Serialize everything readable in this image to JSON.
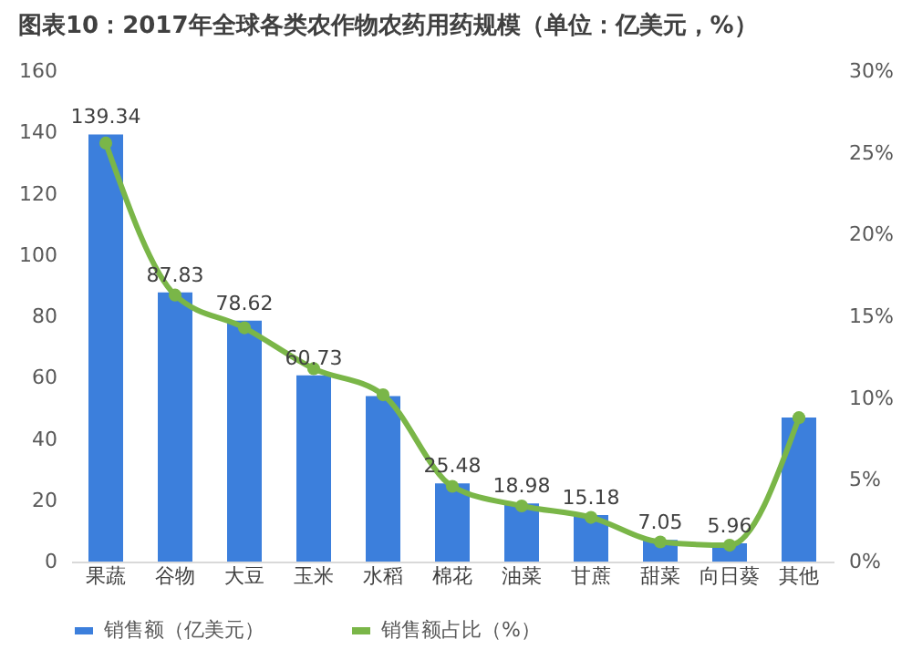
{
  "chart_data": {
    "type": "bar",
    "title": "图表10：2017年全球各类农作物农药用药规模（单位：亿美元，%）",
    "categories": [
      "果蔬",
      "谷物",
      "大豆",
      "玉米",
      "水稻",
      "棉花",
      "油菜",
      "甘蔗",
      "甜菜",
      "向日葵",
      "其他"
    ],
    "series": [
      {
        "name": "销售额（亿美元）",
        "color": "#3c7fdc",
        "values": [
          139.34,
          87.83,
          78.62,
          60.73,
          54,
          25.48,
          18.98,
          15.18,
          7.05,
          5.96,
          47
        ],
        "value_labels": [
          "139.34",
          "87.83",
          "78.62",
          "60.73",
          null,
          "25.48",
          "18.98",
          "15.18",
          "7.05",
          "5.96",
          null
        ]
      },
      {
        "name": "销售额占比（%）",
        "type": "line",
        "axis": "y2",
        "color": "#7ab648",
        "values": [
          25.6,
          16.3,
          14.3,
          11.8,
          10.2,
          4.6,
          3.4,
          2.7,
          1.2,
          1.0,
          8.8
        ]
      }
    ],
    "ylim": [
      0,
      160
    ],
    "yticks": [
      0,
      20,
      40,
      60,
      80,
      100,
      120,
      140,
      160
    ],
    "y2lim": [
      0,
      30
    ],
    "y2ticks": [
      {
        "value": 0,
        "label": "0%"
      },
      {
        "value": 5,
        "label": "5%"
      },
      {
        "value": 10,
        "label": "10%"
      },
      {
        "value": 15,
        "label": "15%"
      },
      {
        "value": 20,
        "label": "20%"
      },
      {
        "value": 25,
        "label": "25%"
      },
      {
        "value": 30,
        "label": "30%"
      }
    ],
    "legend": "bottom",
    "marker": "circle"
  }
}
